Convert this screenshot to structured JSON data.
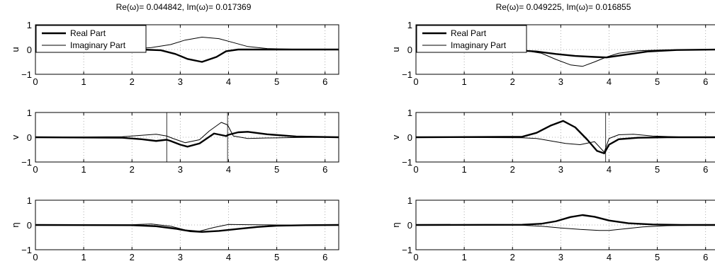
{
  "columns": [
    {
      "title": "Re(ω)= 0.044842,   Im(ω)= 0.017369",
      "legend": [
        "Real Part",
        "Imaginary Part"
      ]
    },
    {
      "title": "Re(ω)= 0.049225,   Im(ω)= 0.016855",
      "legend": [
        "Real Part",
        "Imaginary Part"
      ]
    }
  ],
  "chart_data": [
    {
      "type": "line",
      "panel": "top-left",
      "title": "Re(ω)= 0.044842,   Im(ω)= 0.017369",
      "ylabel": "u",
      "xlim": [
        0,
        6.2832
      ],
      "ylim": [
        -1,
        1
      ],
      "xticks": [
        0,
        1,
        2,
        3,
        4,
        5,
        6
      ],
      "yticks": [
        -1,
        0,
        1
      ],
      "grid": "dotted",
      "legend": "top-left",
      "series": [
        {
          "name": "Real Part",
          "weight": "thick",
          "x": [
            0,
            2.2,
            2.6,
            2.9,
            3.15,
            3.45,
            3.75,
            3.95,
            4.2,
            6.28
          ],
          "y": [
            0,
            0,
            -0.03,
            -0.18,
            -0.38,
            -0.5,
            -0.3,
            -0.07,
            0,
            0
          ]
        },
        {
          "name": "Imaginary Part",
          "weight": "thin",
          "x": [
            0,
            2.0,
            2.4,
            2.8,
            3.1,
            3.45,
            3.8,
            4.1,
            4.4,
            4.8,
            5.4,
            6.28
          ],
          "y": [
            0,
            0.02,
            0.08,
            0.2,
            0.38,
            0.5,
            0.44,
            0.28,
            0.12,
            0.04,
            0.01,
            0
          ]
        }
      ]
    },
    {
      "type": "line",
      "panel": "middle-left",
      "ylabel": "v",
      "xlim": [
        0,
        6.2832
      ],
      "ylim": [
        -1,
        1
      ],
      "xticks": [
        0,
        1,
        2,
        3,
        4,
        5,
        6
      ],
      "yticks": [
        -1,
        0,
        1
      ],
      "grid": "dotted",
      "series": [
        {
          "name": "Real Part",
          "weight": "thick",
          "x": [
            0,
            1.8,
            2.2,
            2.5,
            2.72,
            2.8,
            3.0,
            3.15,
            3.4,
            3.7,
            3.95,
            4.0,
            4.2,
            4.4,
            4.8,
            5.4,
            6.28
          ],
          "y": [
            0,
            -0.02,
            -0.08,
            -0.15,
            -0.1,
            -0.15,
            -0.3,
            -0.38,
            -0.25,
            0.15,
            0.05,
            0.1,
            0.2,
            0.22,
            0.12,
            0.03,
            0
          ]
        },
        {
          "name": "Imaginary Part",
          "weight": "thin",
          "x": [
            0,
            1.8,
            2.2,
            2.5,
            2.72,
            2.85,
            3.1,
            3.4,
            3.6,
            3.85,
            3.98,
            4.1,
            4.4,
            4.8,
            5.4,
            6.28
          ],
          "y": [
            0,
            0.02,
            0.08,
            0.12,
            0.05,
            -0.05,
            -0.22,
            -0.1,
            0.25,
            0.6,
            0.5,
            0.05,
            -0.05,
            -0.03,
            -0.01,
            0
          ]
        }
      ],
      "annotations": [
        {
          "type": "vline",
          "x": 2.72
        },
        {
          "type": "vline",
          "x": 3.98
        }
      ]
    },
    {
      "type": "line",
      "panel": "bottom-left",
      "ylabel": "η",
      "xlim": [
        0,
        6.2832
      ],
      "ylim": [
        -1,
        1
      ],
      "xticks": [
        0,
        1,
        2,
        3,
        4,
        5,
        6
      ],
      "yticks": [
        -1,
        0,
        1
      ],
      "grid": "dotted",
      "series": [
        {
          "name": "Real Part",
          "weight": "thick",
          "x": [
            0,
            2.0,
            2.5,
            2.9,
            3.2,
            3.45,
            3.8,
            4.2,
            4.6,
            5.0,
            5.6,
            6.28
          ],
          "y": [
            0,
            -0.01,
            -0.05,
            -0.15,
            -0.25,
            -0.28,
            -0.24,
            -0.16,
            -0.08,
            -0.03,
            -0.01,
            0
          ]
        },
        {
          "name": "Imaginary Part",
          "weight": "thin",
          "x": [
            0,
            2.0,
            2.4,
            2.8,
            3.1,
            3.4,
            3.7,
            4.0,
            4.4,
            5.0,
            6.28
          ],
          "y": [
            0,
            0.01,
            0.04,
            -0.05,
            -0.2,
            -0.25,
            -0.1,
            0.02,
            0.01,
            0,
            0
          ]
        }
      ]
    },
    {
      "type": "line",
      "panel": "top-right",
      "title": "Re(ω)= 0.049225,   Im(ω)= 0.016855",
      "ylabel": "u",
      "xlim": [
        0,
        6.2832
      ],
      "ylim": [
        -1,
        1
      ],
      "xticks": [
        0,
        1,
        2,
        3,
        4,
        5,
        6
      ],
      "yticks": [
        -1,
        0,
        1
      ],
      "grid": "dotted",
      "legend": "top-left",
      "series": [
        {
          "name": "Real Part",
          "weight": "thick",
          "x": [
            0,
            2.0,
            2.5,
            2.9,
            3.3,
            3.7,
            3.95,
            4.3,
            4.8,
            5.4,
            6.28
          ],
          "y": [
            0,
            -0.02,
            -0.08,
            -0.18,
            -0.26,
            -0.3,
            -0.32,
            -0.22,
            -0.08,
            -0.02,
            0
          ]
        },
        {
          "name": "Imaginary Part",
          "weight": "thin",
          "x": [
            0,
            2.2,
            2.6,
            2.9,
            3.2,
            3.45,
            3.7,
            3.95,
            4.2,
            4.6,
            5.2,
            6.28
          ],
          "y": [
            0,
            -0.03,
            -0.15,
            -0.4,
            -0.62,
            -0.68,
            -0.5,
            -0.3,
            -0.15,
            -0.05,
            -0.01,
            0
          ]
        }
      ]
    },
    {
      "type": "line",
      "panel": "middle-right",
      "ylabel": "v",
      "xlim": [
        0,
        6.2832
      ],
      "ylim": [
        -1,
        1
      ],
      "xticks": [
        0,
        1,
        2,
        3,
        4,
        5,
        6
      ],
      "yticks": [
        -1,
        0,
        1
      ],
      "grid": "dotted",
      "series": [
        {
          "name": "Real Part",
          "weight": "thick",
          "x": [
            0,
            2.2,
            2.5,
            2.8,
            3.05,
            3.3,
            3.55,
            3.75,
            3.9,
            4.0,
            4.2,
            4.6,
            5.2,
            6.28
          ],
          "y": [
            0,
            0.02,
            0.18,
            0.48,
            0.66,
            0.4,
            -0.1,
            -0.55,
            -0.65,
            -0.3,
            -0.08,
            -0.02,
            0,
            0
          ]
        },
        {
          "name": "Imaginary Part",
          "weight": "thin",
          "x": [
            0,
            2.2,
            2.5,
            2.8,
            3.1,
            3.4,
            3.7,
            3.9,
            4.0,
            4.2,
            4.5,
            4.9,
            5.5,
            6.28
          ],
          "y": [
            0,
            -0.02,
            -0.05,
            -0.15,
            -0.25,
            -0.3,
            -0.18,
            -0.6,
            -0.05,
            0.1,
            0.12,
            0.05,
            0.01,
            0
          ]
        }
      ],
      "annotations": [
        {
          "type": "vline",
          "x": 3.93
        }
      ]
    },
    {
      "type": "line",
      "panel": "bottom-right",
      "ylabel": "η",
      "xlim": [
        0,
        6.2832
      ],
      "ylim": [
        -1,
        1
      ],
      "xticks": [
        0,
        1,
        2,
        3,
        4,
        5,
        6
      ],
      "yticks": [
        -1,
        0,
        1
      ],
      "grid": "dotted",
      "series": [
        {
          "name": "Real Part",
          "weight": "thick",
          "x": [
            0,
            2.2,
            2.6,
            2.9,
            3.2,
            3.45,
            3.7,
            4.0,
            4.4,
            4.9,
            5.5,
            6.28
          ],
          "y": [
            0,
            0.01,
            0.05,
            0.15,
            0.32,
            0.4,
            0.33,
            0.18,
            0.07,
            0.02,
            0,
            0
          ]
        },
        {
          "name": "Imaginary Part",
          "weight": "thin",
          "x": [
            0,
            2.2,
            2.6,
            3.0,
            3.4,
            3.8,
            4.0,
            4.3,
            4.7,
            5.2,
            5.8,
            6.28
          ],
          "y": [
            0,
            -0.01,
            -0.05,
            -0.12,
            -0.18,
            -0.22,
            -0.22,
            -0.16,
            -0.08,
            -0.03,
            -0.01,
            0
          ]
        }
      ]
    }
  ]
}
